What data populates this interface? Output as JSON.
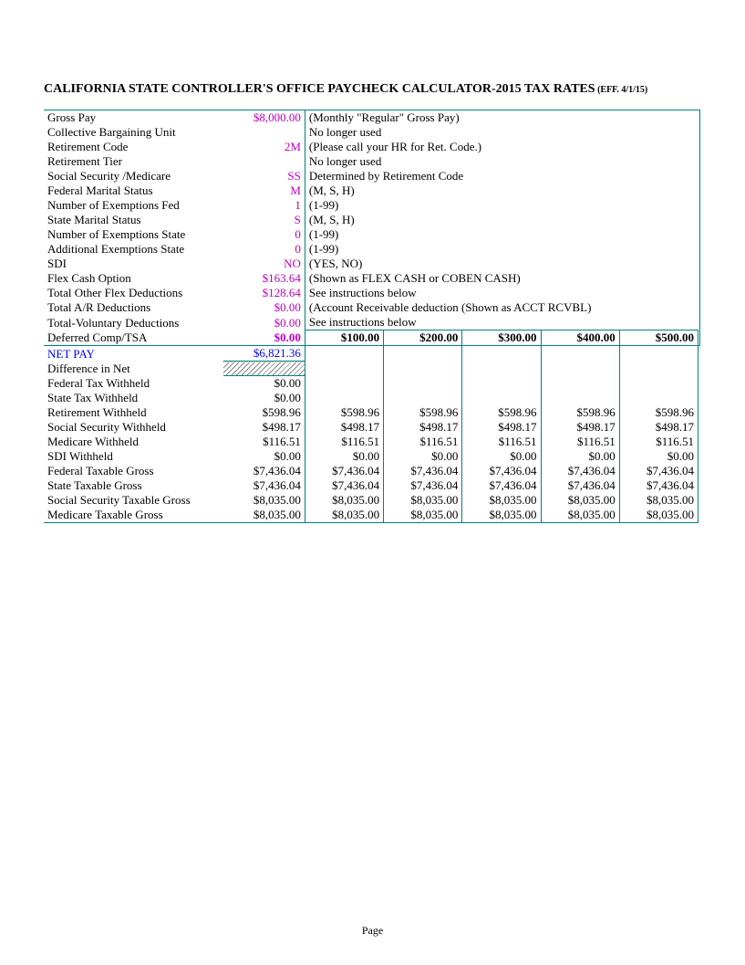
{
  "colors": {
    "purple": "#c000c0",
    "blue": "#0000ff",
    "teal_border": "#008080",
    "text": "#000000",
    "background": "#ffffff"
  },
  "title_main": "CALIFORNIA STATE CONTROLLER'S OFFICE PAYCHECK CALCULATOR-2015 TAX RATES",
  "title_sub": " (EFF. 4/1/15)",
  "inputs": [
    {
      "label": "Gross Pay",
      "value": "$8,000.00",
      "value_class": "purple",
      "note": "(Monthly \"Regular\" Gross Pay)"
    },
    {
      "label": "Collective Bargaining Unit",
      "value": "",
      "value_class": "",
      "note": "No longer used"
    },
    {
      "label": "Retirement Code",
      "value": "2M",
      "value_class": "purple",
      "note": "(Please call your HR for Ret. Code.)"
    },
    {
      "label": "Retirement Tier",
      "value": "",
      "value_class": "",
      "note": "No longer used"
    },
    {
      "label": "Social Security /Medicare",
      "value": "SS",
      "value_class": "purple",
      "note": "Determined by Retirement Code"
    },
    {
      "label": "Federal Marital Status",
      "value": "M",
      "value_class": "purple",
      "note": "(M, S, H)"
    },
    {
      "label": "Number of Exemptions Fed",
      "value": "1",
      "value_class": "purple",
      "note": "(1-99)"
    },
    {
      "label": "State Marital Status",
      "value": "S",
      "value_class": "purple",
      "note": "(M, S, H)"
    },
    {
      "label": "Number of Exemptions State",
      "value": "0",
      "value_class": "purple",
      "note": "(1-99)"
    },
    {
      "label": "Additional Exemptions State",
      "value": "0",
      "value_class": "purple",
      "note": "(1-99)"
    },
    {
      "label": "SDI",
      "value": "NO",
      "value_class": "purple",
      "note": "(YES, NO)"
    },
    {
      "label": "Flex Cash Option",
      "value": "$163.64",
      "value_class": "purple",
      "note": "(Shown as FLEX CASH or COBEN CASH)"
    },
    {
      "label": "Total Other Flex Deductions",
      "value": "$128.64",
      "value_class": "purple",
      "note": "See instructions below"
    },
    {
      "label": "Total A/R Deductions",
      "value": "$0.00",
      "value_class": "purple",
      "note": "(Account Receivable deduction (Shown as ACCT RCVBL)"
    },
    {
      "label": "Total-Voluntary Deductions",
      "value": "$0.00",
      "value_class": "purple",
      "note": "See instructions below"
    }
  ],
  "deferred_row": {
    "label": "Deferred Comp/TSA",
    "value": "$0.00",
    "cols": [
      "$100.00",
      "$200.00",
      "$300.00",
      "$400.00",
      "$500.00"
    ]
  },
  "netpay_row": {
    "label": "NET PAY",
    "value": "$6,821.36"
  },
  "diff_row": {
    "label": "Difference in Net"
  },
  "output_rows": [
    {
      "label": "Federal Tax Withheld",
      "value": "$0.00",
      "cols": [
        "",
        "",
        "",
        "",
        ""
      ]
    },
    {
      "label": "State Tax Withheld",
      "value": "$0.00",
      "cols": [
        "",
        "",
        "",
        "",
        ""
      ]
    },
    {
      "label": "Retirement Withheld",
      "value": "$598.96",
      "cols": [
        "$598.96",
        "$598.96",
        "$598.96",
        "$598.96",
        "$598.96"
      ]
    },
    {
      "label": "Social Security Withheld",
      "value": "$498.17",
      "cols": [
        "$498.17",
        "$498.17",
        "$498.17",
        "$498.17",
        "$498.17"
      ]
    },
    {
      "label": "Medicare Withheld",
      "value": "$116.51",
      "cols": [
        "$116.51",
        "$116.51",
        "$116.51",
        "$116.51",
        "$116.51"
      ]
    },
    {
      "label": "SDI Withheld",
      "value": "$0.00",
      "cols": [
        "$0.00",
        "$0.00",
        "$0.00",
        "$0.00",
        "$0.00"
      ]
    },
    {
      "label": "Federal Taxable Gross",
      "value": "$7,436.04",
      "cols": [
        "$7,436.04",
        "$7,436.04",
        "$7,436.04",
        "$7,436.04",
        "$7,436.04"
      ]
    },
    {
      "label": "State Taxable Gross",
      "value": "$7,436.04",
      "cols": [
        "$7,436.04",
        "$7,436.04",
        "$7,436.04",
        "$7,436.04",
        "$7,436.04"
      ]
    },
    {
      "label": "Social Security Taxable Gross",
      "value": "$8,035.00",
      "cols": [
        "$8,035.00",
        "$8,035.00",
        "$8,035.00",
        "$8,035.00",
        "$8,035.00"
      ]
    },
    {
      "label": "Medicare Taxable Gross",
      "value": "$8,035.00",
      "cols": [
        "$8,035.00",
        "$8,035.00",
        "$8,035.00",
        "$8,035.00",
        "$8,035.00"
      ]
    }
  ],
  "footer": "Page"
}
